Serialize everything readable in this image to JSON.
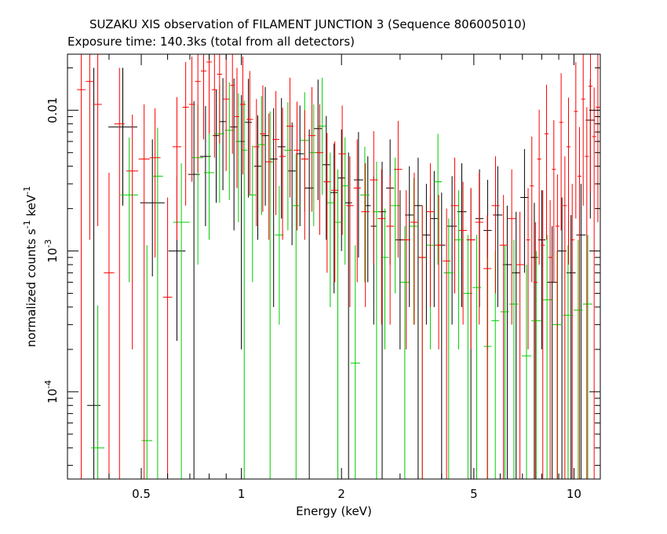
{
  "title": "SUZAKU XIS observation of FILAMENT JUNCTION 3 (Sequence 806005010)",
  "subtitle": "Exposure time: 140.3ks (total from all detectors)",
  "chart_data": {
    "type": "scatter",
    "title": "SUZAKU XIS observation of FILAMENT JUNCTION 3 (Sequence 806005010)",
    "subtitle": "Exposure time: 140.3ks (total from all detectors)",
    "xlabel": "Energy (keV)",
    "ylabel_parts": [
      "normalized counts s",
      "-1",
      " keV",
      "-1"
    ],
    "x_scale": "log",
    "y_scale": "log",
    "xlim": [
      0.3,
      12
    ],
    "ylim": [
      2.4e-05,
      0.025
    ],
    "x_ticks": [
      {
        "value": 0.5,
        "label": "0.5"
      },
      {
        "value": 1,
        "label": "1"
      },
      {
        "value": 2,
        "label": "2"
      },
      {
        "value": 5,
        "label": "5"
      },
      {
        "value": 10,
        "label": "10"
      }
    ],
    "y_ticks": [
      {
        "value": 0.0001,
        "label": "10",
        "exp": "-4"
      },
      {
        "value": 0.001,
        "label": "10",
        "exp": "-3"
      },
      {
        "value": 0.01,
        "label": "0.01",
        "exp": ""
      }
    ],
    "legend": "none",
    "grid": false,
    "series": [
      {
        "color": "#000000",
        "points": [
          [
            0.36,
            8e-05,
            2e-05,
            0.02
          ],
          [
            0.44,
            0.0076,
            0.0021,
            0.02
          ],
          [
            0.54,
            0.0022,
            0.00066,
            0.0062
          ],
          [
            0.64,
            0.001,
            0.00023,
            0.0034
          ],
          [
            0.72,
            0.0035,
            2e-05,
            0.0116
          ],
          [
            0.78,
            0.0047,
            0.0015,
            0.0107
          ],
          [
            0.84,
            0.0066,
            0.0022,
            0.014
          ],
          [
            0.88,
            0.0083,
            0.0027,
            0.0169
          ],
          [
            0.95,
            0.0076,
            0.0014,
            0.0168
          ],
          [
            1.0,
            0.006,
            0.0002,
            0.0128
          ],
          [
            1.05,
            0.0082,
            0.0024,
            0.0167
          ],
          [
            1.12,
            0.004,
            0.0012,
            0.0092
          ],
          [
            1.18,
            0.0066,
            0.0021,
            0.0146
          ],
          [
            1.25,
            0.0045,
            0.0004,
            0.0103
          ],
          [
            1.32,
            0.0055,
            0.0017,
            0.0122
          ],
          [
            1.42,
            0.0037,
            0.0011,
            0.0082
          ],
          [
            1.5,
            0.0049,
            0.0015,
            0.0108
          ],
          [
            1.6,
            0.0028,
            2e-05,
            0.0073
          ],
          [
            1.7,
            0.0074,
            0.0023,
            0.0165
          ],
          [
            1.8,
            0.0041,
            0.0012,
            0.0091
          ],
          [
            1.9,
            0.0026,
            0.0005,
            0.0058
          ],
          [
            2.0,
            0.0033,
            0.001,
            0.0073
          ],
          [
            2.1,
            0.0022,
            2e-05,
            0.005
          ],
          [
            2.25,
            0.0032,
            0.0009,
            0.007
          ],
          [
            2.4,
            0.0021,
            0.0006,
            0.0047
          ],
          [
            2.5,
            0.0015,
            0.0003,
            0.0034
          ],
          [
            2.65,
            0.0019,
            2e-05,
            0.0043
          ],
          [
            2.8,
            0.0028,
            0.0008,
            0.0062
          ],
          [
            3.0,
            0.0012,
            0.0002,
            0.0027
          ],
          [
            3.2,
            0.0018,
            0.0004,
            0.004
          ],
          [
            3.4,
            0.0021,
            2e-05,
            0.0046
          ],
          [
            3.6,
            0.0013,
            0.0003,
            0.003
          ],
          [
            3.8,
            0.0017,
            0.0004,
            0.0037
          ],
          [
            4.0,
            0.0011,
            2e-05,
            0.0026
          ],
          [
            4.3,
            0.0015,
            0.0003,
            0.0034
          ],
          [
            4.6,
            0.0019,
            0.0004,
            0.0042
          ],
          [
            4.9,
            0.0012,
            2e-05,
            0.0028
          ],
          [
            5.2,
            0.0017,
            0.0004,
            0.0038
          ],
          [
            5.5,
            0.0014,
            0.0002,
            0.0032
          ],
          [
            5.9,
            0.0018,
            0.0004,
            0.004
          ],
          [
            6.3,
            0.0008,
            2e-05,
            0.0021
          ],
          [
            6.7,
            0.0007,
            2e-05,
            0.0019
          ],
          [
            7.1,
            0.0024,
            0.0007,
            0.0053
          ],
          [
            7.6,
            0.0009,
            2e-05,
            0.0022
          ],
          [
            8.0,
            0.0012,
            0.0002,
            0.0027
          ],
          [
            8.6,
            0.0006,
            2e-05,
            0.0015
          ],
          [
            9.2,
            0.001,
            2e-05,
            0.0024
          ],
          [
            9.8,
            0.0007,
            2e-05,
            0.0018
          ],
          [
            10.5,
            0.0013,
            2e-05,
            0.003
          ],
          [
            11.2,
            0.0085,
            0.0017,
            0.0166
          ]
        ]
      },
      {
        "color": "#00cc00",
        "points": [
          [
            0.37,
            4e-05,
            2e-05,
            0.00041
          ],
          [
            0.46,
            0.0025,
            0.0006,
            0.0064
          ],
          [
            0.52,
            4.5e-05,
            2e-05,
            0.0011
          ],
          [
            0.56,
            0.0034,
            2e-05,
            0.0075
          ],
          [
            0.66,
            0.0016,
            2e-05,
            0.0042
          ],
          [
            0.74,
            0.0046,
            0.0008,
            0.0109
          ],
          [
            0.8,
            0.0036,
            0.0012,
            0.0083
          ],
          [
            0.86,
            0.0068,
            0.0022,
            0.015
          ],
          [
            0.92,
            0.0072,
            0.0023,
            0.0158
          ],
          [
            0.98,
            0.006,
            0.0016,
            0.0132
          ],
          [
            1.02,
            0.0052,
            2e-05,
            0.0117
          ],
          [
            1.08,
            0.0025,
            0.0006,
            0.0056
          ],
          [
            1.15,
            0.0057,
            0.0018,
            0.0126
          ],
          [
            1.22,
            0.0043,
            2e-05,
            0.0098
          ],
          [
            1.3,
            0.0013,
            0.0003,
            0.0029
          ],
          [
            1.38,
            0.0052,
            0.0014,
            0.0114
          ],
          [
            1.46,
            0.0021,
            2e-05,
            0.0049
          ],
          [
            1.55,
            0.0061,
            0.0019,
            0.0134
          ],
          [
            1.65,
            0.005,
            0.0015,
            0.011
          ],
          [
            1.75,
            0.0077,
            0.0025,
            0.017
          ],
          [
            1.85,
            0.0022,
            0.0004,
            0.005
          ],
          [
            1.95,
            0.0016,
            2e-05,
            0.0038
          ],
          [
            2.05,
            0.0029,
            0.0008,
            0.0064
          ],
          [
            2.2,
            0.00016,
            2e-05,
            0.0011
          ],
          [
            2.35,
            0.0025,
            0.0006,
            0.0055
          ],
          [
            2.55,
            0.0019,
            2e-05,
            0.0043
          ],
          [
            2.7,
            0.0009,
            0.0002,
            0.002
          ],
          [
            2.9,
            0.0021,
            0.0005,
            0.0046
          ],
          [
            3.1,
            0.0006,
            2e-05,
            0.0015
          ],
          [
            3.3,
            0.0015,
            0.0003,
            0.0033
          ],
          [
            3.5,
            0.0009,
            2e-05,
            0.0021
          ],
          [
            3.7,
            0.0011,
            0.0002,
            0.0025
          ],
          [
            3.9,
            0.0031,
            0.0008,
            0.0068
          ],
          [
            4.2,
            0.0007,
            2e-05,
            0.0017
          ],
          [
            4.5,
            0.0012,
            0.0002,
            0.0027
          ],
          [
            4.8,
            0.0005,
            2e-05,
            0.0013
          ],
          [
            5.1,
            0.00055,
            2e-05,
            0.0013
          ],
          [
            5.5,
            0.00021,
            2e-05,
            0.0009
          ],
          [
            5.8,
            0.00032,
            2e-05,
            0.001
          ],
          [
            6.2,
            0.00037,
            2e-05,
            0.0011
          ],
          [
            6.6,
            0.00042,
            2e-05,
            0.0012
          ],
          [
            7.2,
            0.00018,
            2e-05,
            0.0008
          ],
          [
            7.7,
            0.00032,
            2e-05,
            0.001
          ],
          [
            8.3,
            0.00045,
            2e-05,
            0.0013
          ],
          [
            8.9,
            0.0003,
            2e-05,
            0.001
          ],
          [
            9.6,
            0.00035,
            2e-05,
            0.0011
          ],
          [
            10.3,
            0.00038,
            2e-05,
            0.0012
          ],
          [
            11.0,
            0.00042,
            2e-05,
            0.0013
          ]
        ]
      },
      {
        "color": "#ff0000",
        "points": [
          [
            0.33,
            0.014,
            2e-05,
            0.03
          ],
          [
            0.35,
            0.016,
            0.0012,
            0.03
          ],
          [
            0.37,
            0.011,
            0.0015,
            0.025
          ],
          [
            0.4,
            0.0007,
            2e-05,
            0.0036
          ],
          [
            0.43,
            0.008,
            2e-05,
            0.02
          ],
          [
            0.47,
            0.0037,
            0.0002,
            0.0093
          ],
          [
            0.51,
            0.0045,
            2e-05,
            0.011
          ],
          [
            0.55,
            0.0046,
            0.0009,
            0.0103
          ],
          [
            0.6,
            0.00047,
            2e-05,
            0.0024
          ],
          [
            0.64,
            0.0055,
            0.0012,
            0.0124
          ],
          [
            0.68,
            0.0105,
            0.0021,
            0.022
          ],
          [
            0.71,
            0.011,
            0.0031,
            0.024
          ],
          [
            0.74,
            0.016,
            0.0036,
            0.03
          ],
          [
            0.77,
            0.019,
            0.0062,
            0.03
          ],
          [
            0.8,
            0.022,
            0.0068,
            0.03
          ],
          [
            0.83,
            0.014,
            0.0046,
            0.03
          ],
          [
            0.86,
            0.018,
            0.0058,
            0.03
          ],
          [
            0.9,
            0.012,
            0.0037,
            0.026
          ],
          [
            0.94,
            0.015,
            0.0049,
            0.03
          ],
          [
            0.97,
            0.009,
            0.0028,
            0.02
          ],
          [
            1.01,
            0.011,
            0.0035,
            0.024
          ],
          [
            1.06,
            0.0086,
            0.0025,
            0.019
          ],
          [
            1.11,
            0.0055,
            0.0015,
            0.012
          ],
          [
            1.16,
            0.0068,
            0.0019,
            0.015
          ],
          [
            1.21,
            0.0043,
            0.0012,
            0.0095
          ],
          [
            1.27,
            0.0062,
            0.0018,
            0.0137
          ],
          [
            1.33,
            0.0047,
            0.0012,
            0.0104
          ],
          [
            1.4,
            0.0077,
            0.0024,
            0.017
          ],
          [
            1.47,
            0.0052,
            0.0014,
            0.0115
          ],
          [
            1.55,
            0.0045,
            0.0012,
            0.01
          ],
          [
            1.63,
            0.0066,
            0.0019,
            0.0146
          ],
          [
            1.72,
            0.005,
            0.0013,
            0.011
          ],
          [
            1.81,
            0.0031,
            0.0007,
            0.0069
          ],
          [
            1.91,
            0.0027,
            0.0006,
            0.006
          ],
          [
            2.01,
            0.0049,
            0.0013,
            0.0108
          ],
          [
            2.12,
            0.0021,
            0.0004,
            0.0047
          ],
          [
            2.23,
            0.0028,
            0.0006,
            0.0062
          ],
          [
            2.36,
            0.0019,
            0.0004,
            0.0042
          ],
          [
            2.5,
            0.0032,
            0.0008,
            0.0071
          ],
          [
            2.64,
            0.0017,
            0.0003,
            0.0038
          ],
          [
            2.8,
            0.0015,
            0.0003,
            0.0034
          ],
          [
            2.96,
            0.0038,
            0.0009,
            0.0084
          ],
          [
            3.13,
            0.0012,
            0.0002,
            0.0027
          ],
          [
            3.31,
            0.0016,
            0.0003,
            0.0036
          ],
          [
            3.5,
            0.0009,
            2e-05,
            0.0021
          ],
          [
            3.7,
            0.0019,
            0.0004,
            0.0042
          ],
          [
            3.92,
            0.0011,
            0.0002,
            0.0025
          ],
          [
            4.14,
            0.00085,
            2e-05,
            0.002
          ],
          [
            4.38,
            0.0021,
            0.0005,
            0.0046
          ],
          [
            4.64,
            0.0014,
            0.0003,
            0.0031
          ],
          [
            4.9,
            0.0012,
            0.0002,
            0.0028
          ],
          [
            5.19,
            0.0016,
            0.0003,
            0.0036
          ],
          [
            5.49,
            0.00075,
            2e-05,
            0.0018
          ],
          [
            5.81,
            0.0021,
            0.0005,
            0.0047
          ],
          [
            6.14,
            0.0011,
            2e-05,
            0.0025
          ],
          [
            6.5,
            0.0017,
            0.0003,
            0.0038
          ],
          [
            6.88,
            0.0008,
            2e-05,
            0.0019
          ],
          [
            7.28,
            0.0012,
            0.0002,
            0.0028
          ],
          [
            7.47,
            0.0029,
            0.0006,
            0.0065
          ],
          [
            7.66,
            0.0006,
            2e-05,
            0.0016
          ],
          [
            7.86,
            0.0045,
            0.0008,
            0.0101
          ],
          [
            8.06,
            0.0011,
            2e-05,
            0.0027
          ],
          [
            8.27,
            0.0068,
            0.0012,
            0.0152
          ],
          [
            8.48,
            0.0009,
            2e-05,
            0.0023
          ],
          [
            8.7,
            0.0038,
            0.0006,
            0.0085
          ],
          [
            8.92,
            0.0015,
            2e-05,
            0.0035
          ],
          [
            9.15,
            0.0082,
            0.0014,
            0.0183
          ],
          [
            9.39,
            0.0021,
            2e-05,
            0.0047
          ],
          [
            9.63,
            0.0055,
            0.0008,
            0.0123
          ],
          [
            9.88,
            0.0012,
            2e-05,
            0.003
          ],
          [
            10.13,
            0.0098,
            0.0017,
            0.0219
          ],
          [
            10.39,
            0.0034,
            2e-05,
            0.0076
          ],
          [
            10.66,
            0.012,
            0.0021,
            0.025
          ],
          [
            10.93,
            0.0047,
            2e-05,
            0.0105
          ],
          [
            11.21,
            0.0148,
            0.0026,
            0.025
          ],
          [
            11.5,
            0.0065,
            2e-05,
            0.0145
          ],
          [
            11.8,
            0.0105,
            0.0016,
            0.025
          ]
        ]
      }
    ]
  }
}
